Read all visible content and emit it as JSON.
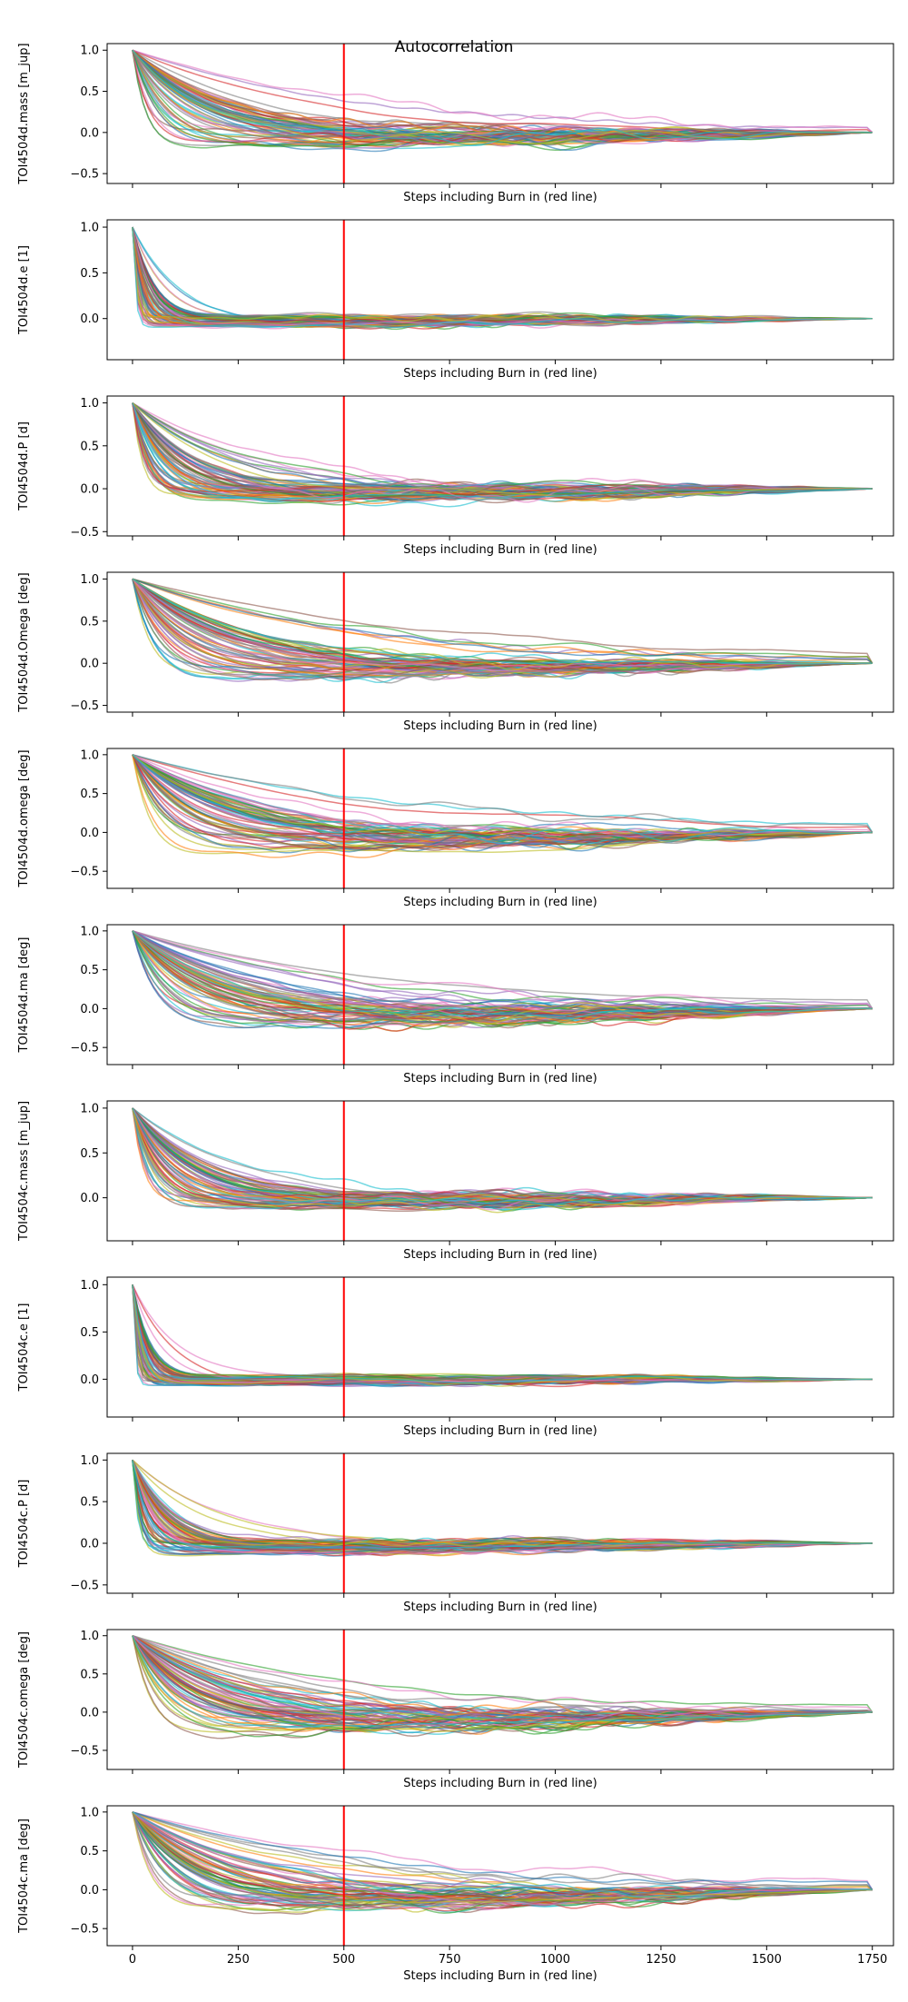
{
  "title": "Autocorrelation",
  "chart_data": {
    "type": "line",
    "title": "Autocorrelation",
    "xlabel": "Steps including Burn in (red line)",
    "xlim": [
      -60,
      1800
    ],
    "x_ticks": [
      0,
      250,
      500,
      750,
      1000,
      1250,
      1500,
      1750
    ],
    "x_tick_labels": [
      "0",
      "250",
      "500",
      "750",
      "1000",
      "1250",
      "1500",
      "1750"
    ],
    "burn_in_step": 500,
    "burn_in_color": "#ff0000",
    "series_count_per_panel": 70,
    "x_end": 1750,
    "note_series": "many walker autocorrelation curves per panel",
    "panels": [
      {
        "ylabel": "TOI4504d.mass [m_jup]",
        "ylim": [
          -0.62,
          1.08
        ],
        "yticks": [
          1.0,
          0.5,
          0.0,
          -0.5
        ],
        "ytick_labels": [
          "1.0",
          "0.5",
          "0.0",
          "−0.5"
        ],
        "decay": 120,
        "floor": -0.12,
        "spread": 0.14
      },
      {
        "ylabel": "TOI4504d.e [1]",
        "ylim": [
          -0.45,
          1.08
        ],
        "yticks": [
          1.0,
          0.5,
          0.0
        ],
        "ytick_labels": [
          "1.0",
          "0.5",
          "0.0"
        ],
        "decay": 25,
        "floor": -0.03,
        "spread": 0.07
      },
      {
        "ylabel": "TOI4504d.P [d]",
        "ylim": [
          -0.55,
          1.08
        ],
        "yticks": [
          1.0,
          0.5,
          0.0,
          -0.5
        ],
        "ytick_labels": [
          "1.0",
          "0.5",
          "0.0",
          "−0.5"
        ],
        "decay": 80,
        "floor": -0.08,
        "spread": 0.12
      },
      {
        "ylabel": "TOI4504d.Omega [deg]",
        "ylim": [
          -0.58,
          1.08
        ],
        "yticks": [
          1.0,
          0.5,
          0.0,
          -0.5
        ],
        "ytick_labels": [
          "1.0",
          "0.5",
          "0.0",
          "−0.5"
        ],
        "decay": 160,
        "floor": -0.14,
        "spread": 0.12
      },
      {
        "ylabel": "TOI4504d.omega [deg]",
        "ylim": [
          -0.72,
          1.08
        ],
        "yticks": [
          1.0,
          0.5,
          0.0,
          -0.5
        ],
        "ytick_labels": [
          "1.0",
          "0.5",
          "0.0",
          "−0.5"
        ],
        "decay": 170,
        "floor": -0.2,
        "spread": 0.16
      },
      {
        "ylabel": "TOI4504d.ma [deg]",
        "ylim": [
          -0.72,
          1.08
        ],
        "yticks": [
          1.0,
          0.5,
          0.0,
          -0.5
        ],
        "ytick_labels": [
          "1.0",
          "0.5",
          "0.0",
          "−0.5"
        ],
        "decay": 170,
        "floor": -0.2,
        "spread": 0.16
      },
      {
        "ylabel": "TOI4504c.mass [m_jup]",
        "ylim": [
          -0.48,
          1.08
        ],
        "yticks": [
          1.0,
          0.5,
          0.0
        ],
        "ytick_labels": [
          "1.0",
          "0.5",
          "0.0"
        ],
        "decay": 90,
        "floor": -0.06,
        "spread": 0.1
      },
      {
        "ylabel": "TOI4504c.e [1]",
        "ylim": [
          -0.4,
          1.08
        ],
        "yticks": [
          1.0,
          0.5,
          0.0
        ],
        "ytick_labels": [
          "1.0",
          "0.5",
          "0.0"
        ],
        "decay": 20,
        "floor": -0.02,
        "spread": 0.06
      },
      {
        "ylabel": "TOI4504c.P [d]",
        "ylim": [
          -0.6,
          1.08
        ],
        "yticks": [
          1.0,
          0.5,
          0.0,
          -0.5
        ],
        "ytick_labels": [
          "1.0",
          "0.5",
          "0.0",
          "−0.5"
        ],
        "decay": 45,
        "floor": -0.06,
        "spread": 0.09
      },
      {
        "ylabel": "TOI4504c.omega [deg]",
        "ylim": [
          -0.75,
          1.08
        ],
        "yticks": [
          1.0,
          0.5,
          0.0,
          -0.5
        ],
        "ytick_labels": [
          "1.0",
          "0.5",
          "0.0",
          "−0.5"
        ],
        "decay": 165,
        "floor": -0.22,
        "spread": 0.16
      },
      {
        "ylabel": "TOI4504c.ma [deg]",
        "ylim": [
          -0.72,
          1.08
        ],
        "yticks": [
          1.0,
          0.5,
          0.0,
          -0.5
        ],
        "ytick_labels": [
          "1.0",
          "0.5",
          "0.0",
          "−0.5"
        ],
        "decay": 165,
        "floor": -0.22,
        "spread": 0.16
      }
    ],
    "palette": [
      "#1f77b4",
      "#ff7f0e",
      "#2ca02c",
      "#d62728",
      "#9467bd",
      "#8c564b",
      "#e377c2",
      "#7f7f7f",
      "#bcbd22",
      "#17becf"
    ],
    "grid": false,
    "legend": "none"
  }
}
